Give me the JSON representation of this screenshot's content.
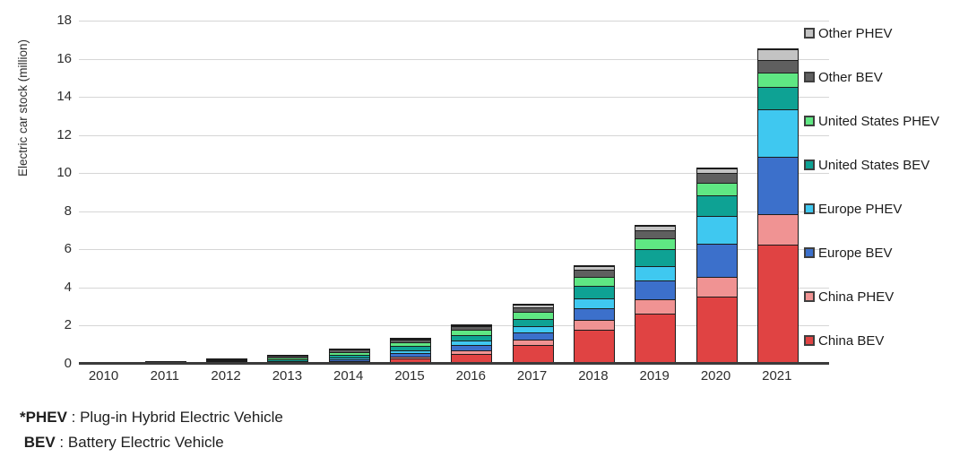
{
  "chart_data": {
    "type": "bar",
    "stacked": true,
    "ylabel": "Electric car stock (million)",
    "ylim": [
      0,
      18
    ],
    "ytick_step": 2,
    "grid": "horizontal-light-gray",
    "legend_position": "right",
    "categories": [
      "2010",
      "2011",
      "2012",
      "2013",
      "2014",
      "2015",
      "2016",
      "2017",
      "2018",
      "2019",
      "2020",
      "2021"
    ],
    "series": [
      {
        "name": "China BEV",
        "color": "#e04343",
        "values": [
          0.01,
          0.01,
          0.02,
          0.03,
          0.08,
          0.23,
          0.49,
          0.95,
          1.75,
          2.58,
          3.5,
          6.2
        ]
      },
      {
        "name": "China PHEV",
        "color": "#f09393",
        "values": [
          0.0,
          0.0,
          0.0,
          0.01,
          0.03,
          0.09,
          0.17,
          0.28,
          0.53,
          0.77,
          1.0,
          1.6
        ]
      },
      {
        "name": "Europe BEV",
        "color": "#3c70cb",
        "values": [
          0.0,
          0.01,
          0.03,
          0.05,
          0.1,
          0.19,
          0.29,
          0.37,
          0.57,
          0.97,
          1.75,
          3.0
        ]
      },
      {
        "name": "Europe PHEV",
        "color": "#3fc8f0",
        "values": [
          0.0,
          0.0,
          0.01,
          0.03,
          0.08,
          0.16,
          0.23,
          0.31,
          0.55,
          0.78,
          1.45,
          2.5
        ]
      },
      {
        "name": "United States BEV",
        "color": "#0ea294",
        "values": [
          0.0,
          0.01,
          0.03,
          0.08,
          0.14,
          0.21,
          0.3,
          0.4,
          0.64,
          0.88,
          1.1,
          1.2
        ]
      },
      {
        "name": "United States PHEV",
        "color": "#5fe783",
        "values": [
          0.0,
          0.01,
          0.04,
          0.09,
          0.15,
          0.19,
          0.26,
          0.36,
          0.47,
          0.57,
          0.65,
          0.75
        ]
      },
      {
        "name": "Other BEV",
        "color": "#5f5f5f",
        "values": [
          0.01,
          0.02,
          0.05,
          0.09,
          0.11,
          0.14,
          0.18,
          0.25,
          0.4,
          0.43,
          0.5,
          0.65
        ]
      },
      {
        "name": "Other PHEV",
        "color": "#c3c3c3",
        "values": [
          0.0,
          0.0,
          0.01,
          0.01,
          0.02,
          0.04,
          0.08,
          0.13,
          0.19,
          0.22,
          0.27,
          0.55
        ]
      }
    ],
    "legend_top_to_bottom": [
      "Other PHEV",
      "Other BEV",
      "United States PHEV",
      "United States BEV",
      "Europe PHEV",
      "Europe BEV",
      "China PHEV",
      "China BEV"
    ]
  },
  "footnotes": [
    {
      "term": "*PHEV",
      "separator": " : ",
      "definition": "Plug-in Hybrid Electric Vehicle"
    },
    {
      "term": "BEV",
      "separator": " : ",
      "definition": "Battery Electric Vehicle"
    }
  ],
  "colors": {
    "background": "#ffffff",
    "gridline": "#d6d6d6",
    "axis_line": "#3b3b3b",
    "bar_border": "#1c1c1c",
    "text": "#2e2e2e"
  }
}
